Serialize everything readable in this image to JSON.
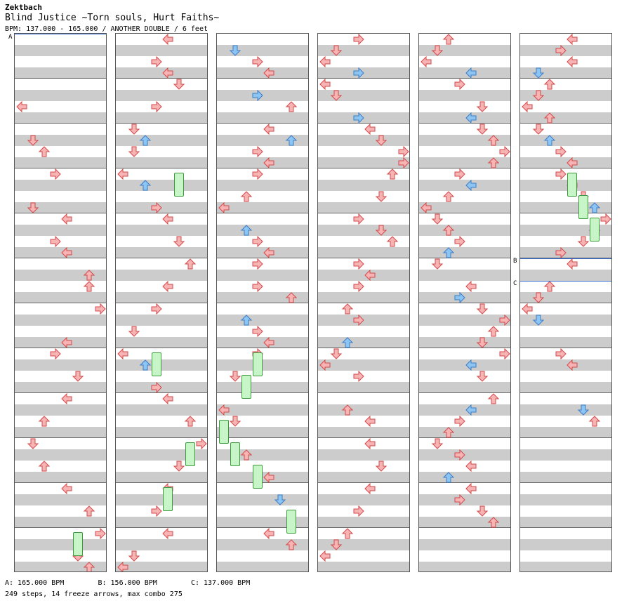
{
  "artist": "Zektbach",
  "title": "Blind Justice ~Torn souls, Hurt Faiths~",
  "subtitle": "BPM: 137.000 - 165.000 / ANOTHER DOUBLE / 6 feet",
  "bpm_markers": [
    {
      "label": "A",
      "bpm_text": "A: 165.000 BPM"
    },
    {
      "label": "B",
      "bpm_text": "B: 156.000 BPM"
    },
    {
      "label": "C",
      "bpm_text": "C: 137.000 BPM"
    }
  ],
  "stats": "249 steps, 14 freeze arrows, max combo 275",
  "colors": {
    "red": "#f6b4b4",
    "red_stroke": "#d24a4a",
    "blue": "#8ec4f2",
    "blue_stroke": "#3c7ec8",
    "freeze": "#c8f5c8"
  },
  "icons": [
    "left-arrow-icon",
    "down-arrow-icon",
    "up-arrow-icon",
    "right-arrow-icon"
  ]
}
